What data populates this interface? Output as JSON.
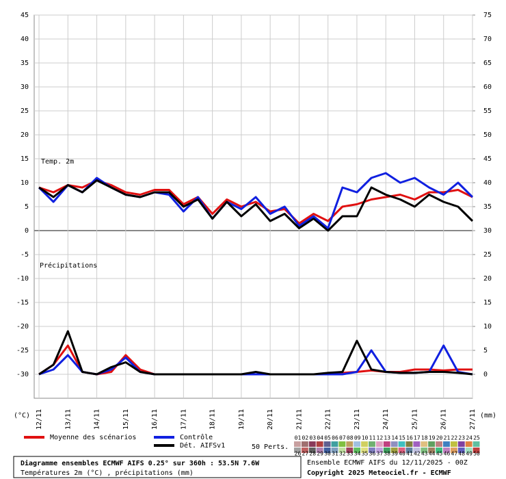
{
  "chart_data": {
    "type": "line",
    "title": "Diagramme ensembles ECMWF AIFS 0.25° sur 360h : 53.5N 7.6W",
    "subtitle": "Températures 2m (°C) , précipitations (mm)",
    "run_label": "Ensemble ECMWF AIFS du 12/11/2025 - 00Z",
    "copyright": "Copyright 2025 Meteociel.fr - ECMWF",
    "temp_label": "Temp. 2m",
    "precip_label": "Précipitations",
    "y_unit": "(°C)",
    "y2_unit": "(mm)",
    "perts_label": "50 Perts.",
    "grid": true,
    "x": [
      0,
      12,
      24,
      36,
      48,
      60,
      72,
      84,
      96,
      108,
      120,
      132,
      144,
      156,
      168,
      180,
      192,
      204,
      216,
      228,
      240,
      252,
      264,
      276,
      288,
      300,
      312,
      324,
      336,
      348,
      360
    ],
    "xlim": [
      -4,
      360
    ],
    "xticks": [
      {
        "value": 0,
        "label": "12/11"
      },
      {
        "value": 24,
        "label": "13/11"
      },
      {
        "value": 48,
        "label": "14/11"
      },
      {
        "value": 72,
        "label": "15/11"
      },
      {
        "value": 96,
        "label": "16/11"
      },
      {
        "value": 120,
        "label": "17/11"
      },
      {
        "value": 144,
        "label": "18/11"
      },
      {
        "value": 168,
        "label": "19/11"
      },
      {
        "value": 192,
        "label": "20/11"
      },
      {
        "value": 216,
        "label": "21/11"
      },
      {
        "value": 240,
        "label": "22/11"
      },
      {
        "value": 264,
        "label": "23/11"
      },
      {
        "value": 288,
        "label": "24/11"
      },
      {
        "value": 312,
        "label": "25/11"
      },
      {
        "value": 336,
        "label": "26/11"
      },
      {
        "value": 360,
        "label": "27/11"
      }
    ],
    "ylim": [
      -35,
      45
    ],
    "yticks": [
      45,
      40,
      35,
      30,
      25,
      20,
      15,
      10,
      5,
      0,
      -5,
      -10,
      -15,
      -20,
      -25,
      -30
    ],
    "y2lim": [
      -5,
      75
    ],
    "y2ticks": [
      75,
      70,
      65,
      60,
      55,
      50,
      45,
      40,
      35,
      30,
      25,
      20,
      15,
      10,
      5,
      0
    ],
    "precip_axis": "y2",
    "series": [
      {
        "name": "Moyenne des scénarios",
        "color": "#e01010",
        "values": [
          9,
          8,
          9.5,
          9,
          10.5,
          9.5,
          8,
          7.5,
          8.5,
          8.5,
          5.5,
          7,
          3.5,
          6.5,
          5,
          6,
          4,
          4.5,
          1.5,
          3.5,
          2,
          5,
          5.5,
          6.5,
          7,
          7.5,
          6.5,
          8,
          8,
          8.5,
          7
        ],
        "precip": [
          0,
          2,
          6,
          0.5,
          0,
          0.5,
          4,
          1,
          0,
          0,
          0,
          0,
          0,
          0,
          0,
          0,
          0,
          0,
          0,
          0,
          0,
          0.3,
          0.5,
          0.8,
          0.5,
          0.5,
          1,
          1,
          0.8,
          1,
          1
        ]
      },
      {
        "name": "Contrôle",
        "color": "#1020e0",
        "values": [
          9,
          6,
          9.5,
          8,
          11,
          9,
          7.5,
          7,
          8,
          7.5,
          4,
          7,
          2.5,
          6,
          4.5,
          7,
          3.5,
          5,
          1,
          3,
          0.5,
          9,
          8,
          11,
          12,
          10,
          11,
          9,
          7.5,
          10,
          7
        ],
        "precip": [
          0,
          1,
          4,
          0.5,
          0,
          1,
          3.5,
          0.5,
          0,
          0,
          0,
          0,
          0,
          0,
          0,
          0,
          0,
          0,
          0,
          0,
          0,
          0,
          0.5,
          5,
          0.5,
          0.3,
          0.3,
          0.5,
          6,
          0.5,
          0
        ]
      },
      {
        "name": "Dét. AIFSv1",
        "color": "#000000",
        "values": [
          9,
          7,
          9.5,
          8,
          10.5,
          9,
          7.5,
          7,
          8,
          8,
          5,
          6.5,
          2.5,
          6,
          3,
          5.5,
          2,
          3.5,
          0.5,
          2.5,
          0,
          3,
          3,
          9,
          7.5,
          6.5,
          5,
          7.5,
          6,
          5,
          2
        ],
        "precip": [
          0,
          2,
          9,
          0.5,
          0,
          1.5,
          2.5,
          0.5,
          0,
          0,
          0,
          0,
          0,
          0,
          0,
          0.5,
          0,
          0,
          0,
          0,
          0.3,
          0.5,
          7,
          1,
          0.5,
          0.3,
          0.3,
          0.5,
          0.5,
          0.3,
          0
        ]
      }
    ],
    "members": [
      "01",
      "02",
      "03",
      "04",
      "05",
      "06",
      "07",
      "08",
      "09",
      "10",
      "11",
      "12",
      "13",
      "14",
      "15",
      "16",
      "17",
      "18",
      "19",
      "20",
      "21",
      "22",
      "23",
      "24",
      "25",
      "26",
      "27",
      "28",
      "29",
      "30",
      "31",
      "32",
      "33",
      "34",
      "35",
      "36",
      "37",
      "38",
      "39",
      "40",
      "41",
      "42",
      "43",
      "44",
      "45",
      "46",
      "47",
      "48",
      "49",
      "50"
    ],
    "member_colors": [
      "#c8a0a0",
      "#a07070",
      "#8a3a5a",
      "#b04040",
      "#606090",
      "#40a0a0",
      "#80c040",
      "#c0a060",
      "#a0c0e0",
      "#d0d060",
      "#70b070",
      "#e0a0c0",
      "#c04080",
      "#9090c0",
      "#40c0c0",
      "#808040",
      "#a060c0",
      "#e0c080",
      "#60a060",
      "#c08080",
      "#4080c0",
      "#c0c040",
      "#8040a0",
      "#e08040",
      "#60c0a0",
      "#a0a0a0",
      "#c06060",
      "#606060",
      "#b080b0",
      "#4060a0",
      "#80a0c0",
      "#c0e0a0",
      "#a04060",
      "#60c060",
      "#e0e080",
      "#8080c0",
      "#c0a0e0",
      "#40a060",
      "#a0a040",
      "#e06080",
      "#6080a0",
      "#c0c0e0",
      "#80c080",
      "#a08060",
      "#40c080",
      "#c080c0",
      "#e0a060",
      "#6060c0",
      "#a0e0c0",
      "#c04040"
    ]
  }
}
